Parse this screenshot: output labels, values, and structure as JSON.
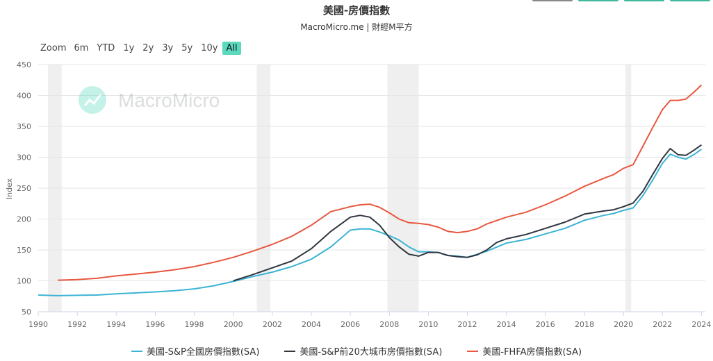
{
  "header": {
    "title": "美國-房價指數",
    "subtitle": "MacroMicro.me | 財經M平方"
  },
  "top_buttons": [
    "#888888",
    "#3fb89d",
    "#3fb89d",
    "#3fb89d"
  ],
  "zoom": {
    "label": "Zoom",
    "buttons": [
      "6m",
      "YTD",
      "1y",
      "2y",
      "3y",
      "5y",
      "10y",
      "All"
    ],
    "active": "All"
  },
  "watermark": {
    "text": "MacroMicro",
    "icon": "chart-logo-icon"
  },
  "colors": {
    "series1": "#3bb4d4",
    "series2": "#2f3640",
    "series3": "#e8573f",
    "accent": "#5ad9be",
    "recession": "#efefef"
  },
  "chart_data": {
    "type": "line",
    "title": "美國-房價指數",
    "ylabel": "Index",
    "xlabel": "",
    "xlim": [
      1990,
      2024.2
    ],
    "ylim": [
      50,
      450
    ],
    "yticks": [
      50,
      100,
      150,
      200,
      250,
      300,
      350,
      400,
      450
    ],
    "xticks": [
      1990,
      1992,
      1994,
      1996,
      1998,
      2000,
      2002,
      2004,
      2006,
      2008,
      2010,
      2012,
      2014,
      2016,
      2018,
      2020,
      2022,
      2024
    ],
    "grid": true,
    "legend_position": "bottom",
    "recessions": [
      [
        1990.5,
        1991.2
      ],
      [
        2001.2,
        2001.9
      ],
      [
        2007.9,
        2009.5
      ],
      [
        2020.1,
        2020.4
      ]
    ],
    "series": [
      {
        "name": "美國-S&P全國房價指數(SA)",
        "points": [
          [
            1990,
            77
          ],
          [
            1991,
            76
          ],
          [
            1992,
            76.5
          ],
          [
            1993,
            77
          ],
          [
            1994,
            79
          ],
          [
            1995,
            80.5
          ],
          [
            1996,
            82
          ],
          [
            1997,
            84
          ],
          [
            1998,
            87
          ],
          [
            1999,
            92
          ],
          [
            2000,
            99
          ],
          [
            2001,
            107
          ],
          [
            2002,
            114
          ],
          [
            2003,
            123
          ],
          [
            2004,
            135
          ],
          [
            2005,
            155
          ],
          [
            2006,
            182
          ],
          [
            2006.5,
            184
          ],
          [
            2007,
            184
          ],
          [
            2007.5,
            179
          ],
          [
            2008,
            173
          ],
          [
            2008.5,
            166
          ],
          [
            2009,
            155
          ],
          [
            2009.5,
            147
          ],
          [
            2010,
            147
          ],
          [
            2010.5,
            146
          ],
          [
            2011,
            141
          ],
          [
            2011.5,
            140
          ],
          [
            2012,
            138
          ],
          [
            2012.5,
            143
          ],
          [
            2013,
            148
          ],
          [
            2014,
            161
          ],
          [
            2015,
            167
          ],
          [
            2016,
            176
          ],
          [
            2017,
            185
          ],
          [
            2018,
            198
          ],
          [
            2019,
            206
          ],
          [
            2019.5,
            209
          ],
          [
            2020,
            214
          ],
          [
            2020.5,
            218
          ],
          [
            2021,
            238
          ],
          [
            2021.5,
            263
          ],
          [
            2022,
            290
          ],
          [
            2022.4,
            305
          ],
          [
            2022.8,
            300
          ],
          [
            2023.2,
            297
          ],
          [
            2023.6,
            304
          ],
          [
            2024,
            313
          ]
        ]
      },
      {
        "name": "美國-S&P前20大城市房價指數(SA)",
        "points": [
          [
            2000,
            100
          ],
          [
            2001,
            110
          ],
          [
            2002,
            121
          ],
          [
            2003,
            132
          ],
          [
            2004,
            152
          ],
          [
            2005,
            180
          ],
          [
            2006,
            203
          ],
          [
            2006.5,
            206
          ],
          [
            2007,
            203
          ],
          [
            2007.5,
            190
          ],
          [
            2008,
            170
          ],
          [
            2008.5,
            155
          ],
          [
            2009,
            143
          ],
          [
            2009.5,
            140
          ],
          [
            2010,
            146
          ],
          [
            2010.5,
            146
          ],
          [
            2011,
            141
          ],
          [
            2011.5,
            139
          ],
          [
            2012,
            138
          ],
          [
            2012.5,
            142
          ],
          [
            2013,
            150
          ],
          [
            2013.5,
            162
          ],
          [
            2014,
            168
          ],
          [
            2015,
            175
          ],
          [
            2016,
            185
          ],
          [
            2017,
            195
          ],
          [
            2018,
            208
          ],
          [
            2019,
            213
          ],
          [
            2019.5,
            215
          ],
          [
            2020,
            220
          ],
          [
            2020.5,
            226
          ],
          [
            2021,
            245
          ],
          [
            2021.5,
            272
          ],
          [
            2022,
            298
          ],
          [
            2022.4,
            314
          ],
          [
            2022.8,
            304
          ],
          [
            2023.2,
            303
          ],
          [
            2023.6,
            311
          ],
          [
            2024,
            320
          ]
        ]
      },
      {
        "name": "美國-FHFA房價指數(SA)",
        "points": [
          [
            1991,
            101
          ],
          [
            1992,
            102
          ],
          [
            1993,
            104
          ],
          [
            1994,
            108
          ],
          [
            1995,
            111
          ],
          [
            1996,
            114
          ],
          [
            1997,
            118
          ],
          [
            1998,
            123
          ],
          [
            1999,
            130
          ],
          [
            2000,
            138
          ],
          [
            2001,
            148
          ],
          [
            2002,
            159
          ],
          [
            2003,
            172
          ],
          [
            2004,
            190
          ],
          [
            2005,
            212
          ],
          [
            2006,
            220
          ],
          [
            2006.5,
            223
          ],
          [
            2007,
            224
          ],
          [
            2007.5,
            219
          ],
          [
            2008,
            210
          ],
          [
            2008.5,
            200
          ],
          [
            2009,
            194
          ],
          [
            2009.5,
            193
          ],
          [
            2010,
            191
          ],
          [
            2010.5,
            187
          ],
          [
            2011,
            180
          ],
          [
            2011.5,
            178
          ],
          [
            2012,
            180
          ],
          [
            2012.5,
            184
          ],
          [
            2013,
            192
          ],
          [
            2014,
            203
          ],
          [
            2015,
            211
          ],
          [
            2016,
            223
          ],
          [
            2017,
            237
          ],
          [
            2018,
            253
          ],
          [
            2019,
            266
          ],
          [
            2019.5,
            272
          ],
          [
            2020,
            282
          ],
          [
            2020.5,
            288
          ],
          [
            2021,
            318
          ],
          [
            2021.5,
            348
          ],
          [
            2022,
            377
          ],
          [
            2022.4,
            392
          ],
          [
            2022.8,
            392
          ],
          [
            2023.2,
            394
          ],
          [
            2023.6,
            405
          ],
          [
            2024,
            417
          ]
        ]
      }
    ]
  }
}
